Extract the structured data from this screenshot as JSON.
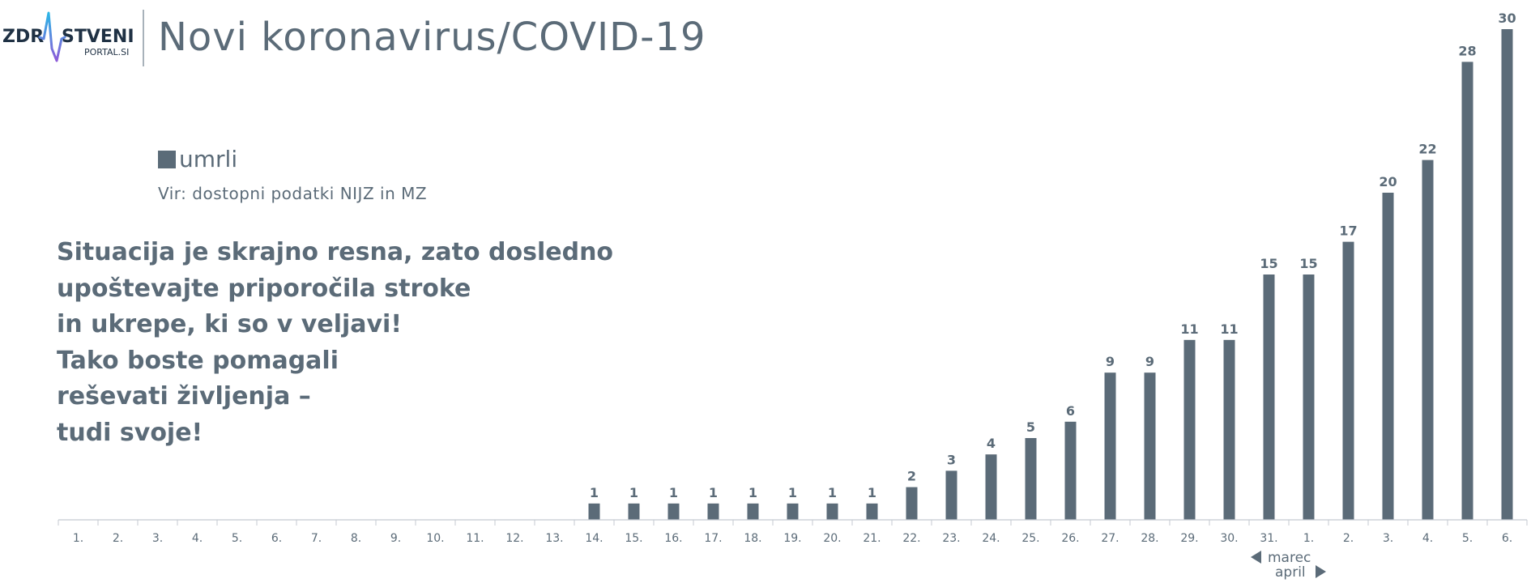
{
  "logo": {
    "text_left": "ZDR",
    "text_right": "STVENI",
    "subtext": "PORTAL.SI",
    "gradient_colors": [
      "#2ab6e6",
      "#8e5bd8"
    ]
  },
  "header": {
    "title": "Novi koronavirus/COVID-19"
  },
  "legend": {
    "label": "umrli",
    "color": "#5b6b78"
  },
  "source_note": "Vir: dostopni podatki NIJZ in MZ",
  "message": {
    "lines": [
      "Situacija je skrajno resna, zato dosledno",
      "upoštevajte priporočila stroke",
      "in ukrepe, ki so v veljavi!",
      "Tako boste pomagali",
      "reševati življenja –",
      "tudi svoje!"
    ]
  },
  "chart_data": {
    "type": "bar",
    "categories": [
      "1.",
      "2.",
      "3.",
      "4.",
      "5.",
      "6.",
      "7.",
      "8.",
      "9.",
      "10.",
      "11.",
      "12.",
      "13.",
      "14.",
      "15.",
      "16.",
      "17.",
      "18.",
      "19.",
      "20.",
      "21.",
      "22.",
      "23.",
      "24.",
      "25.",
      "26.",
      "27.",
      "28.",
      "29.",
      "30.",
      "31.",
      "1.",
      "2.",
      "3.",
      "4.",
      "5.",
      "6."
    ],
    "values": [
      null,
      null,
      null,
      null,
      null,
      null,
      null,
      null,
      null,
      null,
      null,
      null,
      null,
      1,
      1,
      1,
      1,
      1,
      1,
      1,
      1,
      2,
      3,
      4,
      5,
      6,
      9,
      9,
      11,
      11,
      15,
      15,
      17,
      20,
      22,
      28,
      30
    ],
    "series": [
      {
        "name": "umrli",
        "color": "#5b6b78"
      }
    ],
    "ylim": [
      0,
      30
    ],
    "months": [
      {
        "label": "marec",
        "direction": "left"
      },
      {
        "label": "april",
        "direction": "right"
      }
    ],
    "grid": false,
    "legend_position": "top-left"
  }
}
